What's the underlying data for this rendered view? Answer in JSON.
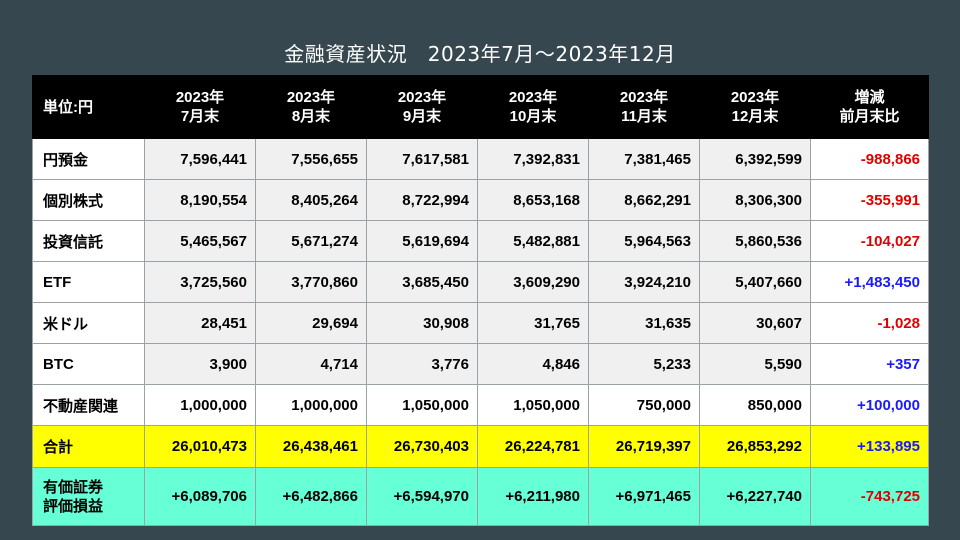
{
  "title": "金融資産状況　2023年7月～2023年12月",
  "chart_data": {
    "type": "table",
    "title": "金融資産状況　2023年7月～2023年12月",
    "unit_label": "単位:円",
    "columns": [
      [
        "2023年",
        "7月末"
      ],
      [
        "2023年",
        "8月末"
      ],
      [
        "2023年",
        "9月末"
      ],
      [
        "2023年",
        "10月末"
      ],
      [
        "2023年",
        "11月末"
      ],
      [
        "2023年",
        "12月末"
      ]
    ],
    "delta_header": [
      "増減",
      "前月末比"
    ],
    "rows": [
      {
        "label": [
          "円預金"
        ],
        "values": [
          "7,596,441",
          "7,556,655",
          "7,617,581",
          "7,392,831",
          "7,381,465",
          "6,392,599"
        ],
        "delta": "-988,866",
        "sign": "neg"
      },
      {
        "label": [
          "個別株式"
        ],
        "values": [
          "8,190,554",
          "8,405,264",
          "8,722,994",
          "8,653,168",
          "8,662,291",
          "8,306,300"
        ],
        "delta": "-355,991",
        "sign": "neg"
      },
      {
        "label": [
          "投資信託"
        ],
        "values": [
          "5,465,567",
          "5,671,274",
          "5,619,694",
          "5,482,881",
          "5,964,563",
          "5,860,536"
        ],
        "delta": "-104,027",
        "sign": "neg"
      },
      {
        "label": [
          "ETF"
        ],
        "values": [
          "3,725,560",
          "3,770,860",
          "3,685,450",
          "3,609,290",
          "3,924,210",
          "5,407,660"
        ],
        "delta": "+1,483,450",
        "sign": "pos"
      },
      {
        "label": [
          "米ドル"
        ],
        "values": [
          "28,451",
          "29,694",
          "30,908",
          "31,765",
          "31,635",
          "30,607"
        ],
        "delta": "-1,028",
        "sign": "neg"
      },
      {
        "label": [
          "BTC"
        ],
        "values": [
          "3,900",
          "4,714",
          "3,776",
          "4,846",
          "5,233",
          "5,590"
        ],
        "delta": "+357",
        "sign": "pos"
      },
      {
        "label": [
          "不動産関連"
        ],
        "values": [
          "1,000,000",
          "1,000,000",
          "1,050,000",
          "1,050,000",
          "750,000",
          "850,000"
        ],
        "delta": "+100,000",
        "sign": "pos",
        "white": true
      }
    ],
    "total": {
      "label": [
        "合計"
      ],
      "values": [
        "26,010,473",
        "26,438,461",
        "26,730,403",
        "26,224,781",
        "26,719,397",
        "26,853,292"
      ],
      "delta": "+133,895",
      "sign": "pos"
    },
    "gain": {
      "label": [
        "有価証券",
        "評価損益"
      ],
      "values": [
        "+6,089,706",
        "+6,482,866",
        "+6,594,970",
        "+6,211,980",
        "+6,971,465",
        "+6,227,740"
      ],
      "delta": "-743,725",
      "sign": "neg"
    },
    "colors": {
      "background": "#37474f",
      "header": "#000000",
      "total_row": "#ffff00",
      "gain_row": "#66ffd6",
      "negative": "#e00000",
      "positive": "#1a1aff"
    }
  }
}
